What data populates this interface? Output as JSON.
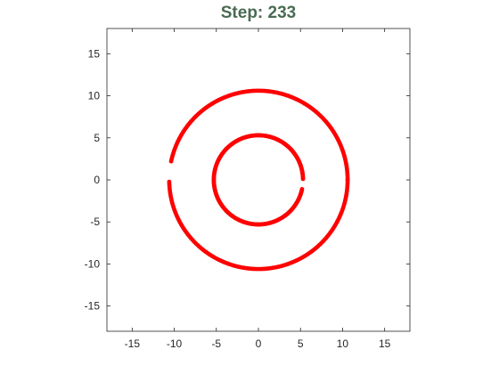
{
  "title": "Step: 233",
  "colors": {
    "title": "#4a6b52",
    "series": "#ff0000",
    "axis": "#262626"
  },
  "chart_data": {
    "type": "scatter",
    "title": "Step: 233",
    "xlabel": "",
    "ylabel": "",
    "xlim": [
      -18,
      18
    ],
    "ylim": [
      -18,
      18
    ],
    "xticks": [
      -15,
      -10,
      -5,
      0,
      5,
      10,
      15
    ],
    "yticks": [
      -15,
      -10,
      -5,
      0,
      5,
      10,
      15
    ],
    "tick_labels_x": [
      "-15",
      "-10",
      "-5",
      "0",
      "5",
      "10",
      "15"
    ],
    "tick_labels_y": [
      "15",
      "10",
      "5",
      "0",
      "-5",
      "-10",
      "-15"
    ],
    "grid": false,
    "series": [
      {
        "center": [
          0,
          0
        ],
        "radius": 10.6,
        "gap_deg": [
          168,
          181
        ],
        "color": "#ff0000"
      },
      {
        "center": [
          0,
          0
        ],
        "radius": 5.3,
        "gap_deg": [
          349,
          361
        ],
        "color": "#ff0000"
      }
    ]
  }
}
